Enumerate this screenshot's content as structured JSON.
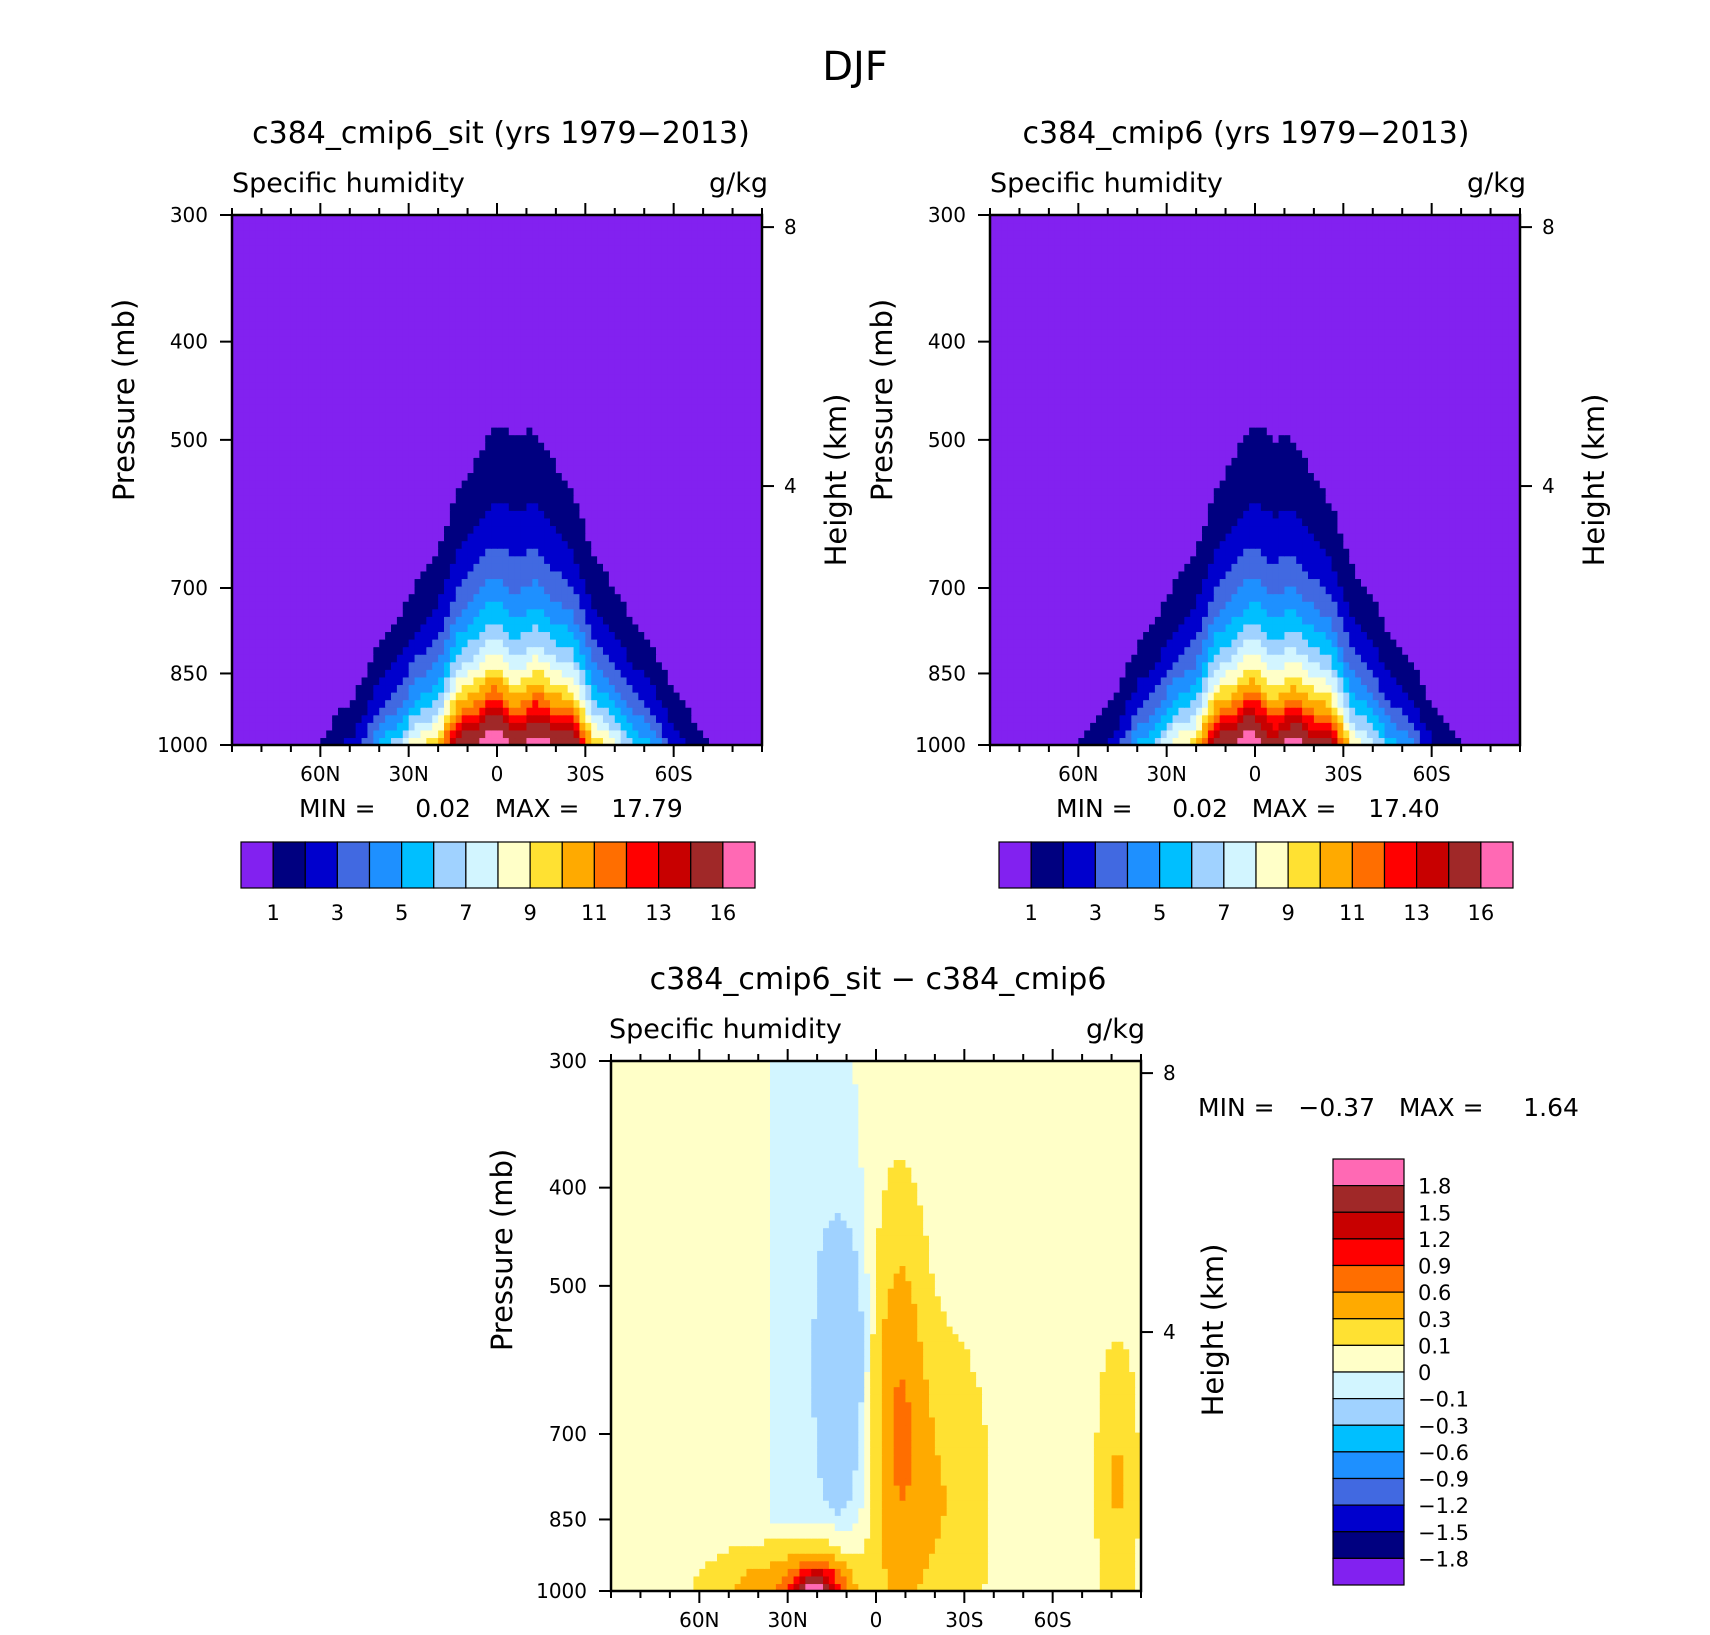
{
  "figure_title": "DJF",
  "chart_data": [
    {
      "type": "heatmap",
      "panel": "top-left",
      "title": "c384_cmip6_sit (yrs 1979−2013)",
      "left_string": "Specific humidity",
      "right_string": "g/kg",
      "ylabel": "Pressure (mb)",
      "ylabel_right": "Height (km)",
      "x_ticks": [
        60,
        30,
        0,
        -30,
        -60
      ],
      "x_tick_labels": [
        "60N",
        "30N",
        "0",
        "30S",
        "60S"
      ],
      "xlim": [
        90,
        -90
      ],
      "y_ticks": [
        300,
        400,
        500,
        700,
        850,
        1000
      ],
      "ylim": [
        1000,
        300
      ],
      "right_ticks_km": [
        8,
        4
      ],
      "min_max_text": "MIN =     0.02   MAX =    17.79",
      "min": 0.02,
      "max": 17.79,
      "levels": [
        1,
        2,
        3,
        4,
        5,
        6,
        7,
        8,
        9,
        10,
        11,
        12,
        13,
        14,
        16
      ],
      "colorbar_labels": [
        "1",
        "3",
        "5",
        "7",
        "9",
        "11",
        "13",
        "16"
      ],
      "model": {
        "peak": 17.79,
        "center_lat": -6,
        "lat_width": 40,
        "top_shift": 0
      }
    },
    {
      "type": "heatmap",
      "panel": "top-right",
      "title": "c384_cmip6 (yrs 1979−2013)",
      "left_string": "Specific humidity",
      "right_string": "g/kg",
      "ylabel": "Pressure (mb)",
      "ylabel_right": "Height (km)",
      "x_ticks": [
        60,
        30,
        0,
        -30,
        -60
      ],
      "x_tick_labels": [
        "60N",
        "30N",
        "0",
        "30S",
        "60S"
      ],
      "xlim": [
        90,
        -90
      ],
      "y_ticks": [
        300,
        400,
        500,
        700,
        850,
        1000
      ],
      "ylim": [
        1000,
        300
      ],
      "right_ticks_km": [
        8,
        4
      ],
      "min_max_text": "MIN =     0.02   MAX =    17.40",
      "min": 0.02,
      "max": 17.4,
      "levels": [
        1,
        2,
        3,
        4,
        5,
        6,
        7,
        8,
        9,
        10,
        11,
        12,
        13,
        14,
        16
      ],
      "colorbar_labels": [
        "1",
        "3",
        "5",
        "7",
        "9",
        "11",
        "13",
        "16"
      ],
      "model": {
        "peak": 17.4,
        "center_lat": -5,
        "lat_width": 39,
        "top_shift": 0
      }
    },
    {
      "type": "heatmap",
      "panel": "bottom",
      "title": "c384_cmip6_sit − c384_cmip6",
      "left_string": "Specific humidity",
      "right_string": "g/kg",
      "ylabel": "Pressure (mb)",
      "ylabel_right": "Height (km)",
      "x_ticks": [
        60,
        30,
        0,
        -30,
        -60
      ],
      "x_tick_labels": [
        "60N",
        "30N",
        "0",
        "30S",
        "60S"
      ],
      "xlim": [
        90,
        -90
      ],
      "y_ticks": [
        300,
        400,
        500,
        700,
        850,
        1000
      ],
      "ylim": [
        1000,
        300
      ],
      "right_ticks_km": [
        8,
        4
      ],
      "min_max_text": "MIN =   −0.37   MAX =     1.64",
      "min": -0.37,
      "max": 1.64,
      "levels": [
        -1.8,
        -1.5,
        -1.2,
        -0.9,
        -0.6,
        -0.3,
        -0.1,
        0,
        0.1,
        0.3,
        0.6,
        0.9,
        1.2,
        1.5,
        1.8
      ],
      "colorbar_labels": [
        "1.8",
        "1.5",
        "1.2",
        "0.9",
        "0.6",
        "0.3",
        "0.1",
        "0",
        "−0.1",
        "−0.3",
        "−0.6",
        "−0.9",
        "−1.2",
        "−1.5",
        "−1.8"
      ]
    }
  ],
  "palette": {
    "humidity": [
      "#8221f0",
      "#000080",
      "#0000cd",
      "#4169e1",
      "#1e90ff",
      "#00bfff",
      "#a0d2ff",
      "#d2f5ff",
      "#ffffc8",
      "#ffe132",
      "#ffaa00",
      "#ff6e00",
      "#ff0000",
      "#c80000",
      "#a02828",
      "#ff69b4"
    ],
    "difference": [
      "#8221f0",
      "#000080",
      "#0000cd",
      "#4169e1",
      "#1e90ff",
      "#00bfff",
      "#a0d2ff",
      "#d2f5ff",
      "#ffffc8",
      "#ffe132",
      "#ffaa00",
      "#ff6e00",
      "#ff0000",
      "#c80000",
      "#a02828",
      "#ff69b4"
    ],
    "axis": "#000000",
    "background": "#ffffff"
  }
}
